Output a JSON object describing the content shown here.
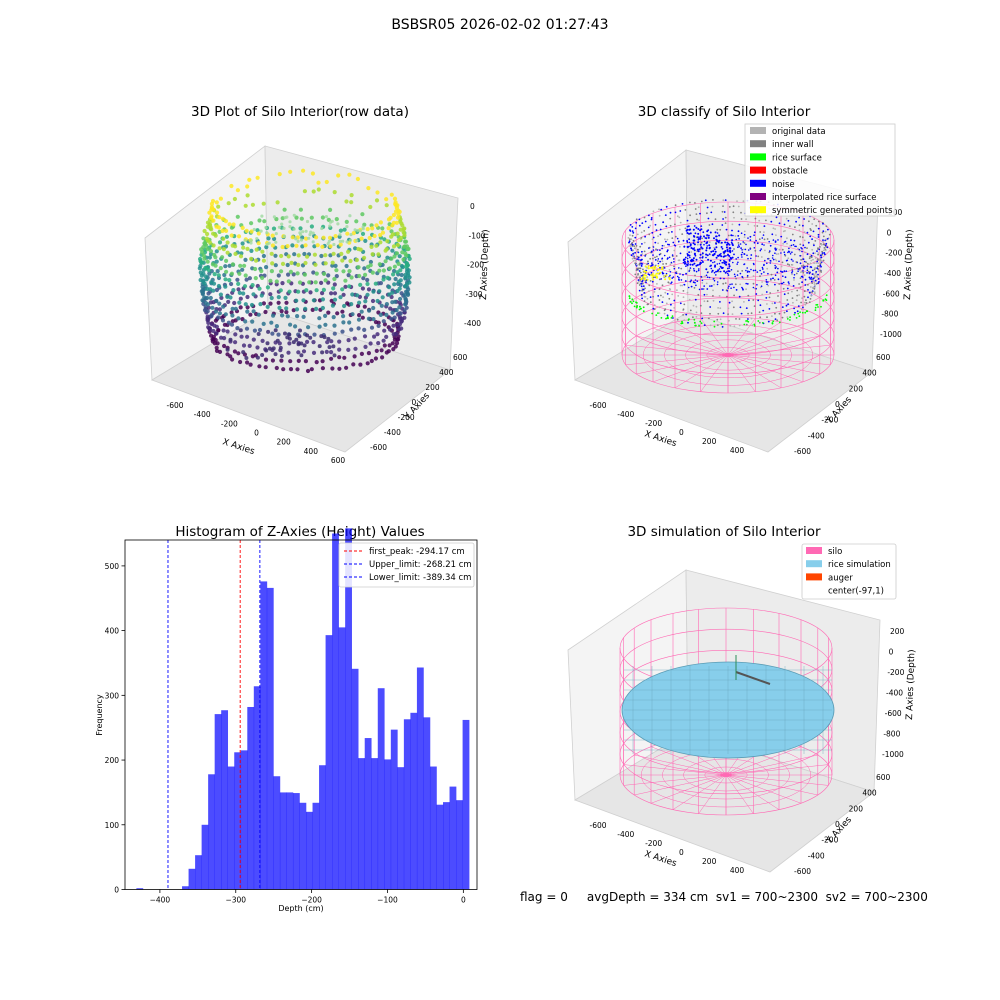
{
  "figure": {
    "suptitle": "BSBSR05 2026-02-02 01:27:43",
    "footer": "flag = 0     avgDepth = 334 cm  sv1 = 700~2300  sv2 = 700~2300"
  },
  "panels": {
    "raw": {
      "title": "3D Plot of Silo Interior(row data)",
      "xlabel": "X Axies",
      "ylabel": "Y Axies",
      "zlabel": "Z Axies (Depth)",
      "xticks": [
        "-600",
        "-400",
        "-200",
        "0",
        "200",
        "400",
        "600"
      ],
      "yticks": [
        "-600",
        "-400",
        "-200",
        "0",
        "200",
        "400",
        "600"
      ],
      "zticks": [
        "0",
        "-100",
        "-200",
        "-300",
        "-400"
      ],
      "colormap": "viridis"
    },
    "classify": {
      "title": "3D classify of Silo Interior",
      "xlabel": "X Axies",
      "ylabel": "Y Axies",
      "zlabel": "Z Axies (Depth)",
      "xticks": [
        "-600",
        "-400",
        "-200",
        "0",
        "200",
        "400"
      ],
      "yticks": [
        "-600",
        "-400",
        "-200",
        "0",
        "200",
        "400",
        "600"
      ],
      "zticks": [
        "200",
        "0",
        "-200",
        "-400",
        "-600",
        "-800",
        "-1000"
      ],
      "legend": [
        {
          "label": "original data",
          "color": "#b3b3b3"
        },
        {
          "label": "inner wall",
          "color": "#808080"
        },
        {
          "label": "rice surface",
          "color": "#00ff00"
        },
        {
          "label": "obstacle",
          "color": "#ff0000"
        },
        {
          "label": "noise",
          "color": "#0000ff"
        },
        {
          "label": "interpolated rice surface",
          "color": "#800080"
        },
        {
          "label": "symmetric generated points",
          "color": "#ffff00"
        }
      ],
      "silo_color": "#ff69b4"
    },
    "simulation": {
      "title": "3D simulation of Silo Interior",
      "xlabel": "X Axies",
      "ylabel": "Y Axies",
      "zlabel": "Z Axies (Depth)",
      "xticks": [
        "-600",
        "-400",
        "-200",
        "0",
        "200",
        "400"
      ],
      "yticks": [
        "-600",
        "-400",
        "-200",
        "0",
        "200",
        "400",
        "600"
      ],
      "zticks": [
        "200",
        "0",
        "-200",
        "-400",
        "-600",
        "-800",
        "-1000"
      ],
      "legend": [
        {
          "label": "silo",
          "color": "#ff69b4"
        },
        {
          "label": "rice simulation",
          "color": "#87ceeb"
        },
        {
          "label": "auger",
          "color": "#ff4500"
        },
        {
          "label": "center(-97,1)",
          "color": "#ffffff"
        }
      ]
    }
  },
  "chart_data": [
    {
      "type": "bar",
      "title": "Histogram of Z-Axies (Height) Values",
      "xlabel": "Depth (cm)",
      "ylabel": "Frequency",
      "bar_color": "#0000ff",
      "bin_start": -431,
      "bin_width": 8.6,
      "values": [
        2,
        0,
        0,
        0,
        0,
        0,
        0,
        5,
        32,
        53,
        100,
        178,
        271,
        277,
        190,
        212,
        215,
        282,
        314,
        476,
        466,
        175,
        150,
        150,
        149,
        134,
        120,
        134,
        192,
        393,
        550,
        405,
        558,
        341,
        203,
        234,
        203,
        311,
        201,
        247,
        189,
        263,
        273,
        343,
        266,
        190,
        131,
        135,
        159,
        138,
        262
      ],
      "xlim": [
        -446,
        18
      ],
      "ylim": [
        0,
        540
      ],
      "xticks": [
        "−400",
        "−300",
        "−200",
        "−100",
        "0"
      ],
      "xtick_values": [
        -400,
        -300,
        -200,
        -100,
        0
      ],
      "yticks": [
        "0",
        "100",
        "200",
        "300",
        "400",
        "500"
      ],
      "ytick_values": [
        0,
        100,
        200,
        300,
        400,
        500
      ],
      "vlines": [
        {
          "value": -294.17,
          "color": "#ff0000",
          "label": "first_peak: -294.17 cm"
        },
        {
          "value": -268.21,
          "color": "#0000ff",
          "label": "Upper_limit: -268.21 cm"
        },
        {
          "value": -389.34,
          "color": "#0000ff",
          "label": "Lower_limit: -389.34 cm"
        }
      ],
      "legend_position": "upper right"
    }
  ]
}
